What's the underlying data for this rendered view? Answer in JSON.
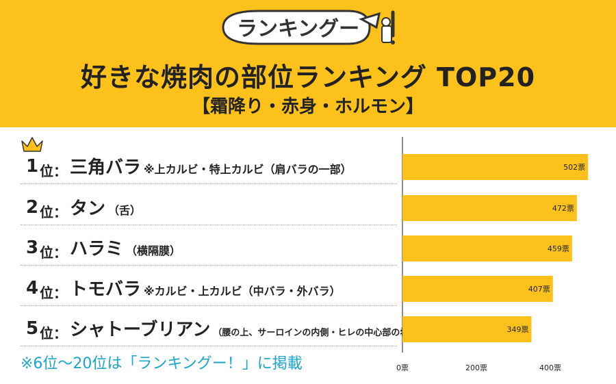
{
  "header": {
    "logo_text": "ランキングー!",
    "title": "好きな焼肉の部位ランキング TOP20",
    "subtitle": "【霜降り・赤身・ホルモン】"
  },
  "ranks": [
    {
      "num": "1",
      "suffix": "位：",
      "name": "三角バラ",
      "note": "※上カルビ・特上カルビ（肩バラの一部）"
    },
    {
      "num": "2",
      "suffix": "位：",
      "name": "タン",
      "note": "（舌）"
    },
    {
      "num": "3",
      "suffix": "位：",
      "name": "ハラミ",
      "note": "（横隔膜）"
    },
    {
      "num": "4",
      "suffix": "位：",
      "name": "トモバラ",
      "note": "※カルビ・上カルビ（中バラ・外バラ）"
    },
    {
      "num": "5",
      "suffix": "位：",
      "name": "シャトーブリアン",
      "note": "（腰の上、サーロインの内側・ヒレの中心部の希少部位）"
    }
  ],
  "footnote": "※6位〜20位は「ランキングー！」に掲載",
  "colors": {
    "header_bg": "#FCC21B",
    "bar": "#FCC21B",
    "footnote": "#1AA5C9",
    "crown": "#FCC21B"
  },
  "chart_data": {
    "type": "bar",
    "orientation": "horizontal",
    "categories": [
      "三角バラ",
      "タン",
      "ハラミ",
      "トモバラ",
      "シャトーブリアン"
    ],
    "values": [
      502,
      472,
      459,
      407,
      349
    ],
    "value_labels": [
      "502票",
      "472票",
      "459票",
      "407票",
      "349票"
    ],
    "xlim": [
      0,
      500
    ],
    "xticks": [
      0,
      200,
      400
    ],
    "xtick_labels": [
      "0票",
      "200票",
      "400票"
    ],
    "grid": false
  }
}
